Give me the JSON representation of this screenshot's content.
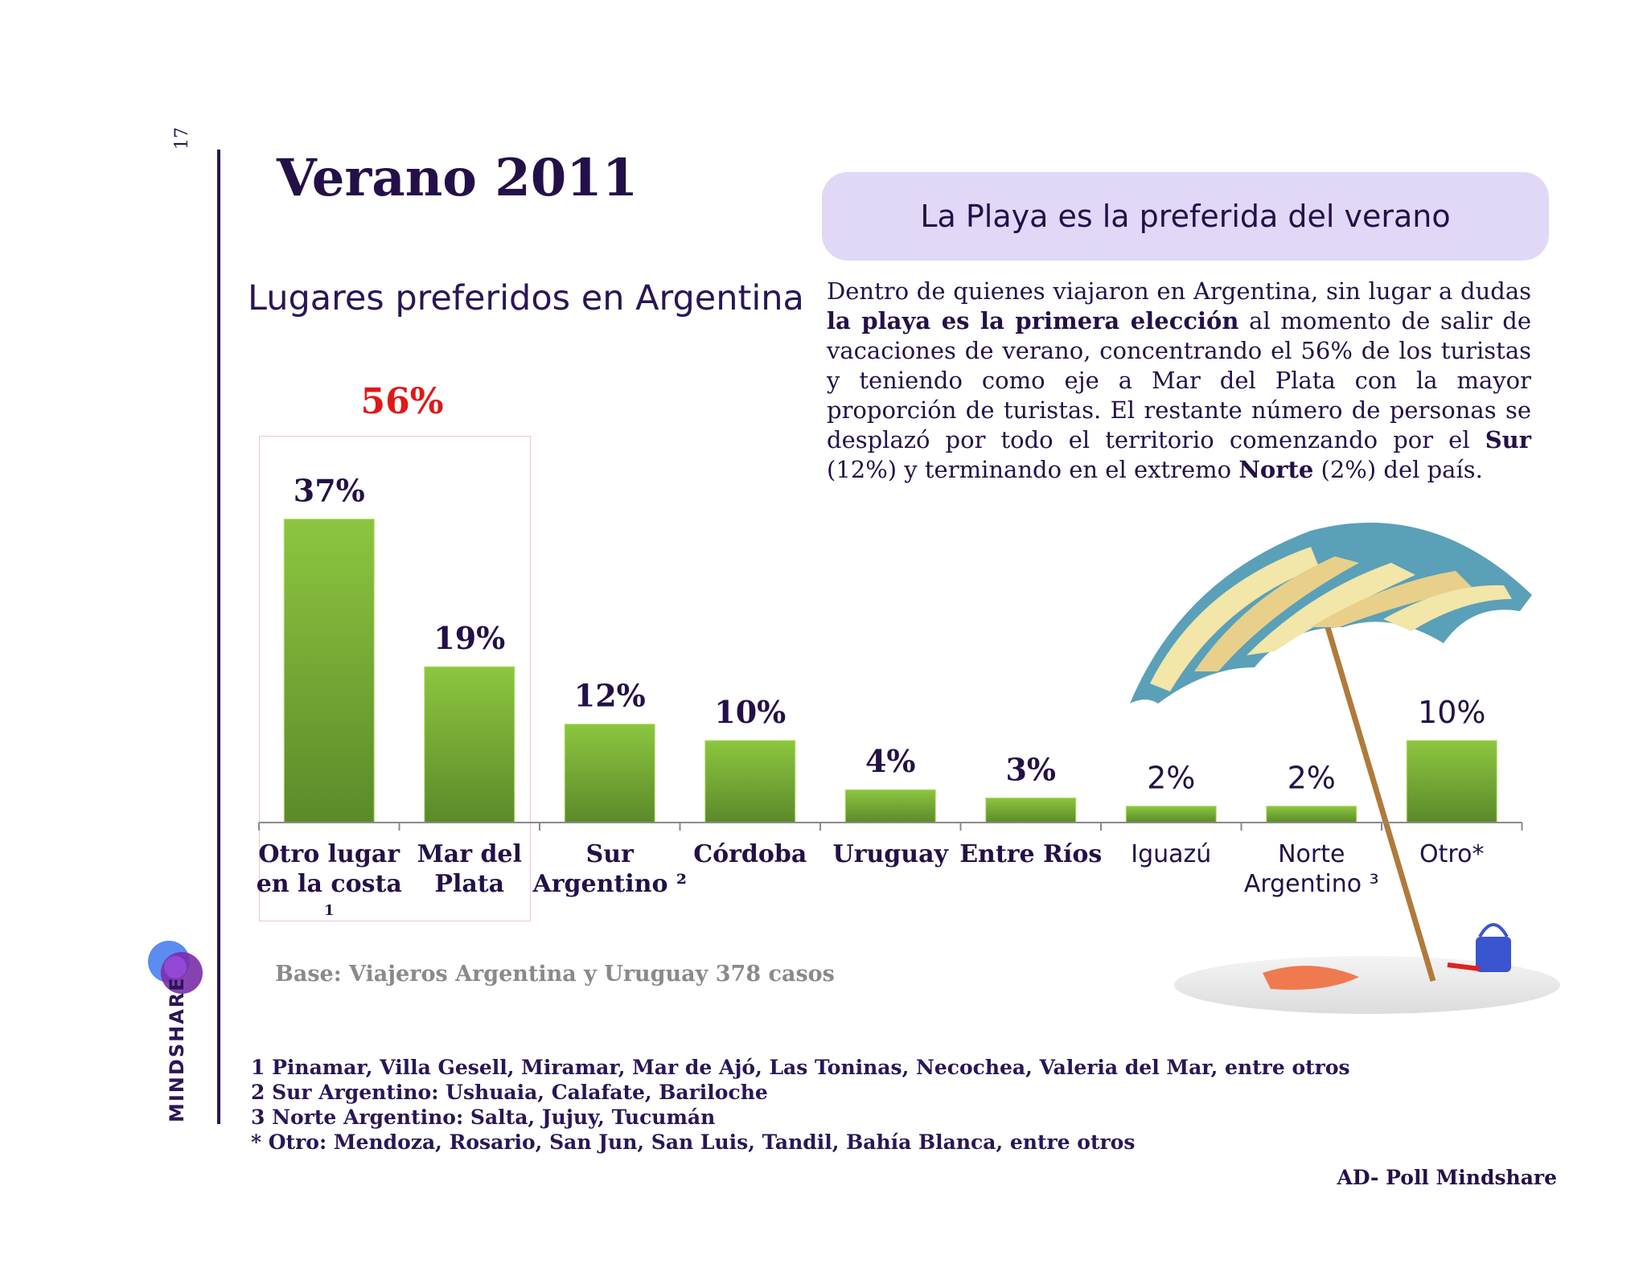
{
  "page": {
    "number": "17"
  },
  "header": {
    "title": "Verano 2011",
    "subtitle": "Lugares preferidos en Argentina",
    "callout": "La Playa es la preferida del verano"
  },
  "paragraph": {
    "p1": "Dentro de quienes viajaron en Argentina, sin lugar a dudas ",
    "b1": "la playa es la primera elección",
    "p2": " al momento de salir de vacaciones de verano, concentrando el 56% de los turistas y teniendo como eje a Mar del Plata con la mayor proporción de turistas. El restante número de personas se desplazó por todo el territorio comenzando por el ",
    "b2": "Sur",
    "p3": " (12%)  y terminando en el extremo ",
    "b3": "Norte",
    "p4": " (2%) del país."
  },
  "highlight": {
    "value": "56%"
  },
  "chart_data": {
    "type": "bar",
    "title": "Lugares preferidos en Argentina",
    "categories": [
      [
        "Otro lugar",
        "en la costa",
        "1"
      ],
      [
        "Mar del",
        "Plata"
      ],
      [
        "Sur",
        "Argentino ²"
      ],
      [
        "Córdoba"
      ],
      [
        "Uruguay"
      ],
      [
        "Entre Ríos"
      ],
      [
        "Iguazú"
      ],
      [
        "Norte",
        "Argentino ³"
      ],
      [
        "Otro*"
      ]
    ],
    "values": [
      37,
      19,
      12,
      10,
      4,
      3,
      2,
      2,
      10
    ],
    "data_labels": [
      "37%",
      "19%",
      "12%",
      "10%",
      "4%",
      "3%",
      "2%",
      "2%",
      "10%"
    ],
    "unit": "%",
    "colors": {
      "bar_top": "#8cc63f",
      "bar_bottom": "#5b8a2a",
      "label": "#241048"
    },
    "grid": false
  },
  "base_note": "Base: Viajeros Argentina y Uruguay 378 casos",
  "footnotes": [
    "1 Pinamar, Villa Gesell, Miramar, Mar de Ajó, Las Toninas, Necochea, Valeria del Mar, entre otros",
    "2 Sur Argentino: Ushuaia, Calafate, Bariloche",
    "3 Norte Argentino: Salta, Jujuy, Tucumán",
    "* Otro: Mendoza, Rosario, San Jun, San Luis, Tandil, Bahía Blanca, entre otros"
  ],
  "source": "AD- Poll Mindshare",
  "brand": {
    "name": "MINDSHARE",
    "logo_icon": "mindshare-logo-icon"
  },
  "illustration": {
    "icon": "beach-umbrella-icon"
  }
}
